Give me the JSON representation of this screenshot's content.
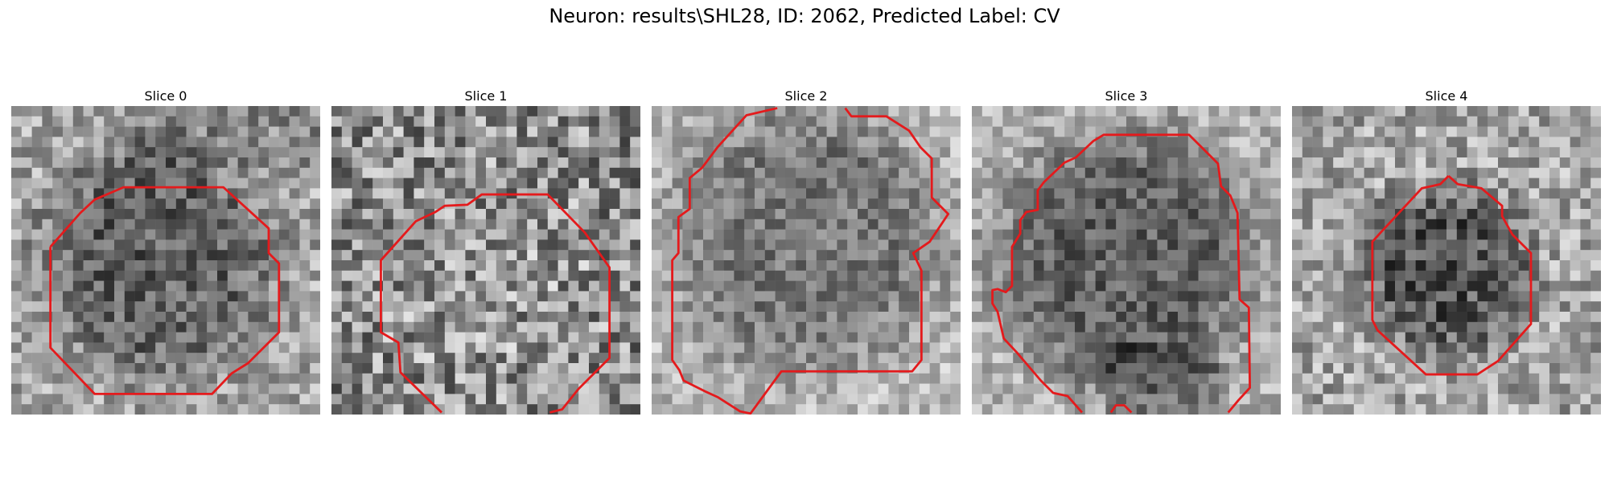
{
  "figure": {
    "title": "Neuron: results\\SHL28, ID: 2062, Predicted Label: CV"
  },
  "panels": [
    {
      "title": "Slice 0"
    },
    {
      "title": "Slice 1"
    },
    {
      "title": "Slice 2"
    },
    {
      "title": "Slice 3"
    },
    {
      "title": "Slice 4"
    }
  ],
  "colors": {
    "contour": "#e41a1c",
    "background": "#ffffff"
  },
  "icons": []
}
